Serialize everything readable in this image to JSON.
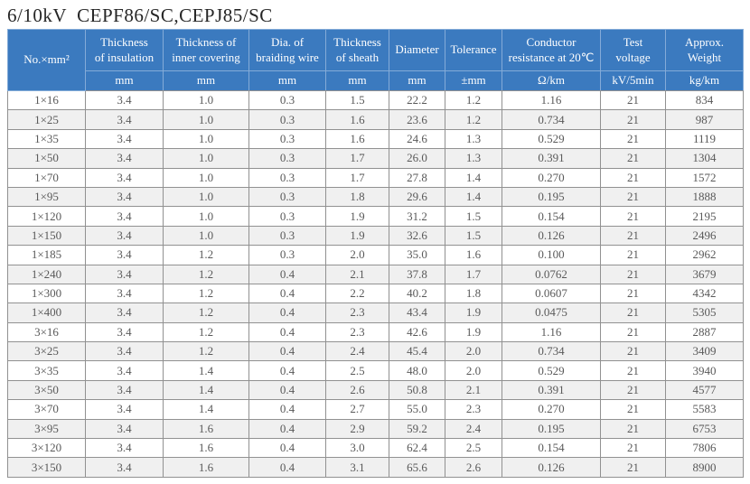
{
  "title": "6/10kV  CEPF86/SC,CEPJ85/SC",
  "colors": {
    "header_bg": "#3b7abf",
    "header_divider": "#84abd8",
    "border": "#919191",
    "stripe": "#f0f0f0",
    "text": "#595959",
    "title": "#262626"
  },
  "table": {
    "columns": [
      {
        "label": "No.×mm²",
        "unit": ""
      },
      {
        "label": "Thickness\nof insulation",
        "unit": "mm"
      },
      {
        "label": "Thickness of\ninner covering",
        "unit": "mm"
      },
      {
        "label": "Dia. of\nbraiding wire",
        "unit": "mm"
      },
      {
        "label": "Thickness\nof sheath",
        "unit": "mm"
      },
      {
        "label": "Diameter",
        "unit": "mm"
      },
      {
        "label": "Tolerance",
        "unit": "±mm"
      },
      {
        "label": "Conductor\nresistance at 20℃",
        "unit": "Ω/km"
      },
      {
        "label": "Test\nvoltage",
        "unit": "kV/5min"
      },
      {
        "label": "Approx.\nWeight",
        "unit": "kg/km"
      }
    ],
    "rows": [
      [
        "1×16",
        "3.4",
        "1.0",
        "0.3",
        "1.5",
        "22.2",
        "1.2",
        "1.16",
        "21",
        "834"
      ],
      [
        "1×25",
        "3.4",
        "1.0",
        "0.3",
        "1.6",
        "23.6",
        "1.2",
        "0.734",
        "21",
        "987"
      ],
      [
        "1×35",
        "3.4",
        "1.0",
        "0.3",
        "1.6",
        "24.6",
        "1.3",
        "0.529",
        "21",
        "1119"
      ],
      [
        "1×50",
        "3.4",
        "1.0",
        "0.3",
        "1.7",
        "26.0",
        "1.3",
        "0.391",
        "21",
        "1304"
      ],
      [
        "1×70",
        "3.4",
        "1.0",
        "0.3",
        "1.7",
        "27.8",
        "1.4",
        "0.270",
        "21",
        "1572"
      ],
      [
        "1×95",
        "3.4",
        "1.0",
        "0.3",
        "1.8",
        "29.6",
        "1.4",
        "0.195",
        "21",
        "1888"
      ],
      [
        "1×120",
        "3.4",
        "1.0",
        "0.3",
        "1.9",
        "31.2",
        "1.5",
        "0.154",
        "21",
        "2195"
      ],
      [
        "1×150",
        "3.4",
        "1.0",
        "0.3",
        "1.9",
        "32.6",
        "1.5",
        "0.126",
        "21",
        "2496"
      ],
      [
        "1×185",
        "3.4",
        "1.2",
        "0.3",
        "2.0",
        "35.0",
        "1.6",
        "0.100",
        "21",
        "2962"
      ],
      [
        "1×240",
        "3.4",
        "1.2",
        "0.4",
        "2.1",
        "37.8",
        "1.7",
        "0.0762",
        "21",
        "3679"
      ],
      [
        "1×300",
        "3.4",
        "1.2",
        "0.4",
        "2.2",
        "40.2",
        "1.8",
        "0.0607",
        "21",
        "4342"
      ],
      [
        "1×400",
        "3.4",
        "1.2",
        "0.4",
        "2.3",
        "43.4",
        "1.9",
        "0.0475",
        "21",
        "5305"
      ],
      [
        "3×16",
        "3.4",
        "1.2",
        "0.4",
        "2.3",
        "42.6",
        "1.9",
        "1.16",
        "21",
        "2887"
      ],
      [
        "3×25",
        "3.4",
        "1.2",
        "0.4",
        "2.4",
        "45.4",
        "2.0",
        "0.734",
        "21",
        "3409"
      ],
      [
        "3×35",
        "3.4",
        "1.4",
        "0.4",
        "2.5",
        "48.0",
        "2.0",
        "0.529",
        "21",
        "3940"
      ],
      [
        "3×50",
        "3.4",
        "1.4",
        "0.4",
        "2.6",
        "50.8",
        "2.1",
        "0.391",
        "21",
        "4577"
      ],
      [
        "3×70",
        "3.4",
        "1.4",
        "0.4",
        "2.7",
        "55.0",
        "2.3",
        "0.270",
        "21",
        "5583"
      ],
      [
        "3×95",
        "3.4",
        "1.6",
        "0.4",
        "2.9",
        "59.2",
        "2.4",
        "0.195",
        "21",
        "6753"
      ],
      [
        "3×120",
        "3.4",
        "1.6",
        "0.4",
        "3.0",
        "62.4",
        "2.5",
        "0.154",
        "21",
        "7806"
      ],
      [
        "3×150",
        "3.4",
        "1.6",
        "0.4",
        "3.1",
        "65.6",
        "2.6",
        "0.126",
        "21",
        "8900"
      ]
    ]
  }
}
